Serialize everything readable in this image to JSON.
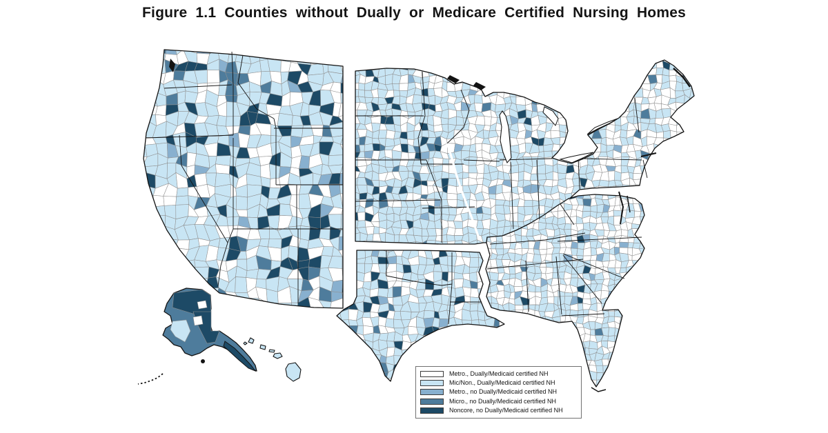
{
  "figure": {
    "title": "Figure 1.1 Counties without Dually or Medicare Certified Nursing Homes"
  },
  "palette": {
    "metro_certified": "#FFFFFF",
    "micnon_certified": "#C8E5F4",
    "metro_no": "#88B0CF",
    "micro_no": "#4E7C9C",
    "noncore_no": "#1D4A66",
    "county_border": "#8F8F8F",
    "state_border": "#131313",
    "legend_border": "#707070"
  },
  "legend": {
    "items": [
      {
        "label": "Metro., Dually/Medicaid certified NH",
        "color_key": "metro_certified"
      },
      {
        "label": "Mic/Non., Dually/Medicaid certified NH",
        "color_key": "micnon_certified"
      },
      {
        "label": "Metro., no Dually/Medicaid certified NH",
        "color_key": "metro_no"
      },
      {
        "label": "Micro., no Dually/Medicaid certified NH",
        "color_key": "micro_no"
      },
      {
        "label": "Noncore, no Dually/Medicaid certified NH",
        "color_key": "noncore_no"
      }
    ]
  },
  "chart_data": {
    "type": "choropleth_map",
    "title": "Figure 1.1 Counties without Dually or Medicare Certified Nursing Homes",
    "region": "United States counties, all 50 states with Alaska and Hawaii insets, census divisions slightly separated by white gaps",
    "legend_position": "bottom-center",
    "categories": [
      {
        "label": "Metro., Dually/Medicaid certified NH",
        "color": "#FFFFFF"
      },
      {
        "label": "Mic/Non., Dually/Medicaid certified NH",
        "color": "#C8E5F4"
      },
      {
        "label": "Metro., no Dually/Medicaid certified NH",
        "color": "#88B0CF"
      },
      {
        "label": "Micro., no Dually/Medicaid certified NH",
        "color": "#4E7C9C"
      },
      {
        "label": "Noncore, no Dually/Medicaid certified NH",
        "color": "#1D4A66"
      }
    ],
    "regional_patterns": [
      "Alaska: almost all boroughs dark (Micro/Noncore, no certified NH)",
      "Mountain West (Montana, Idaho, Nevada, Utah, Colorado, New Mexico) and west Texas: large clusters of Noncore counties with no certified NH",
      "Great Plains (ND, SD, NE, KS, OK, TX panhandle): mostly Mic/Non. counties with certified NH plus scattered dark Noncore counties",
      "Midwest and eastern US: mix of Metro (white) and Mic/Non. (light blue) counties with certified NH; very few counties lacking NH",
      "Hawaii: Mic/Non. counties with certified NH (light blue)"
    ]
  }
}
